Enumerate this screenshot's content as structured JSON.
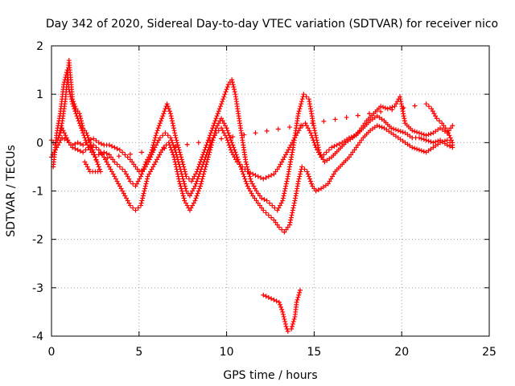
{
  "chart_data": {
    "type": "scatter",
    "title": "Day 342 of 2020, Sidereal Day-to-day VTEC variation (SDTVAR) for receiver nico",
    "xlabel": "GPS time / hours",
    "ylabel": "SDTVAR / TECUs",
    "xlim": [
      0,
      25
    ],
    "ylim": [
      -4,
      2
    ],
    "xticks": [
      0,
      5,
      10,
      15,
      20,
      25
    ],
    "yticks": [
      -4,
      -3,
      -2,
      -1,
      0,
      1,
      2
    ],
    "grid": true,
    "marker": "+",
    "color": "#ff0000",
    "series": [
      {
        "name": "track-1",
        "points": [
          [
            0.0,
            0.05
          ],
          [
            0.2,
            -0.05
          ],
          [
            0.4,
            0.1
          ],
          [
            0.6,
            0.3
          ],
          [
            0.8,
            0.15
          ],
          [
            1.0,
            0.0
          ],
          [
            1.2,
            -0.05
          ],
          [
            1.5,
            0.0
          ],
          [
            1.8,
            -0.05
          ],
          [
            2.1,
            0.05
          ],
          [
            2.4,
            0.08
          ],
          [
            2.7,
            0.0
          ],
          [
            3.0,
            -0.05
          ],
          [
            3.3,
            -0.05
          ],
          [
            3.6,
            -0.1
          ],
          [
            3.9,
            -0.15
          ],
          [
            4.2,
            -0.25
          ],
          [
            4.5,
            -0.35
          ],
          [
            4.8,
            -0.5
          ],
          [
            5.0,
            -0.6
          ],
          [
            5.3,
            -0.55
          ],
          [
            5.6,
            -0.35
          ],
          [
            5.9,
            -0.1
          ],
          [
            6.2,
            0.1
          ],
          [
            6.5,
            0.2
          ],
          [
            6.8,
            0.1
          ],
          [
            7.1,
            -0.2
          ],
          [
            7.4,
            -0.6
          ],
          [
            7.7,
            -1.0
          ],
          [
            7.9,
            -1.1
          ],
          [
            8.2,
            -0.9
          ],
          [
            8.5,
            -0.6
          ],
          [
            8.8,
            -0.3
          ],
          [
            9.1,
            0.0
          ],
          [
            9.4,
            0.2
          ],
          [
            9.7,
            0.3
          ],
          [
            10.0,
            0.1
          ],
          [
            10.3,
            -0.2
          ],
          [
            10.6,
            -0.4
          ],
          [
            10.9,
            -0.5
          ],
          [
            11.2,
            -0.6
          ],
          [
            11.5,
            -0.65
          ],
          [
            11.8,
            -0.7
          ],
          [
            12.1,
            -0.75
          ],
          [
            12.4,
            -0.7
          ],
          [
            12.7,
            -0.65
          ],
          [
            13.0,
            -0.5
          ],
          [
            13.3,
            -0.3
          ],
          [
            13.6,
            -0.1
          ],
          [
            13.9,
            0.1
          ],
          [
            14.2,
            0.3
          ],
          [
            14.5,
            0.4
          ],
          [
            14.8,
            0.2
          ],
          [
            15.1,
            -0.1
          ],
          [
            15.4,
            -0.3
          ],
          [
            15.7,
            -0.2
          ],
          [
            16.0,
            -0.1
          ],
          [
            16.3,
            -0.05
          ],
          [
            16.6,
            0.0
          ],
          [
            17.0,
            0.1
          ],
          [
            17.4,
            0.15
          ],
          [
            17.8,
            0.3
          ],
          [
            18.2,
            0.45
          ],
          [
            18.6,
            0.55
          ],
          [
            19.0,
            0.45
          ],
          [
            19.4,
            0.3
          ],
          [
            19.8,
            0.25
          ],
          [
            20.2,
            0.2
          ],
          [
            20.6,
            0.1
          ],
          [
            21.0,
            0.1
          ],
          [
            21.4,
            0.05
          ],
          [
            21.8,
            0.0
          ],
          [
            22.2,
            0.05
          ],
          [
            22.6,
            -0.05
          ],
          [
            22.9,
            -0.1
          ]
        ]
      },
      {
        "name": "track-2",
        "points": [
          [
            0.0,
            -0.3
          ],
          [
            0.3,
            -0.1
          ],
          [
            0.6,
            0.1
          ],
          [
            0.9,
            0.05
          ],
          [
            1.2,
            -0.1
          ],
          [
            1.5,
            -0.15
          ],
          [
            1.8,
            -0.2
          ],
          [
            2.1,
            -0.1
          ],
          [
            2.4,
            -0.05
          ],
          [
            2.7,
            -0.15
          ],
          [
            3.0,
            -0.3
          ],
          [
            3.3,
            -0.5
          ],
          [
            3.6,
            -0.7
          ],
          [
            3.9,
            -0.9
          ],
          [
            4.2,
            -1.1
          ],
          [
            4.5,
            -1.3
          ],
          [
            4.8,
            -1.4
          ],
          [
            5.1,
            -1.3
          ],
          [
            5.3,
            -1.0
          ],
          [
            5.5,
            -0.7
          ],
          [
            5.8,
            -0.5
          ],
          [
            6.1,
            -0.3
          ],
          [
            6.4,
            -0.1
          ],
          [
            6.7,
            0.0
          ],
          [
            7.0,
            -0.3
          ],
          [
            7.3,
            -0.8
          ],
          [
            7.6,
            -1.2
          ],
          [
            7.9,
            -1.4
          ],
          [
            8.2,
            -1.2
          ],
          [
            8.5,
            -0.9
          ],
          [
            8.8,
            -0.5
          ],
          [
            9.1,
            -0.1
          ],
          [
            9.4,
            0.3
          ],
          [
            9.7,
            0.5
          ],
          [
            10.0,
            0.3
          ],
          [
            10.3,
            0.0
          ],
          [
            10.6,
            -0.3
          ],
          [
            10.9,
            -0.6
          ],
          [
            11.2,
            -0.9
          ],
          [
            11.5,
            -1.1
          ],
          [
            11.8,
            -1.25
          ],
          [
            12.1,
            -1.4
          ],
          [
            12.4,
            -1.5
          ],
          [
            12.7,
            -1.6
          ],
          [
            13.0,
            -1.75
          ],
          [
            13.3,
            -1.85
          ],
          [
            13.6,
            -1.7
          ],
          [
            13.9,
            -1.2
          ],
          [
            14.1,
            -0.8
          ],
          [
            14.3,
            -0.5
          ],
          [
            14.6,
            -0.6
          ],
          [
            14.9,
            -0.9
          ],
          [
            15.1,
            -1.0
          ],
          [
            15.4,
            -0.95
          ],
          [
            15.8,
            -0.85
          ],
          [
            16.2,
            -0.6
          ],
          [
            16.6,
            -0.45
          ],
          [
            17.0,
            -0.3
          ],
          [
            17.4,
            -0.1
          ],
          [
            17.8,
            0.1
          ],
          [
            18.2,
            0.25
          ],
          [
            18.6,
            0.35
          ],
          [
            19.0,
            0.3
          ],
          [
            19.4,
            0.2
          ],
          [
            19.8,
            0.1
          ],
          [
            20.2,
            0.0
          ],
          [
            20.6,
            -0.1
          ],
          [
            21.0,
            -0.15
          ],
          [
            21.4,
            -0.2
          ],
          [
            21.8,
            -0.1
          ],
          [
            22.2,
            0.0
          ],
          [
            22.6,
            0.05
          ],
          [
            22.9,
            -0.05
          ]
        ]
      },
      {
        "name": "track-3",
        "points": [
          [
            0.1,
            -0.5
          ],
          [
            0.3,
            0.2
          ],
          [
            0.5,
            0.6
          ],
          [
            0.7,
            1.2
          ],
          [
            0.9,
            1.5
          ],
          [
            1.0,
            1.1
          ],
          [
            1.2,
            0.8
          ],
          [
            1.4,
            0.6
          ],
          [
            1.6,
            0.4
          ],
          [
            1.8,
            0.2
          ],
          [
            2.0,
            0.0
          ],
          [
            2.3,
            -0.2
          ],
          [
            2.5,
            -0.3
          ],
          [
            2.7,
            -0.25
          ],
          [
            3.0,
            -0.2
          ],
          [
            3.3,
            -0.25
          ],
          [
            3.6,
            -0.4
          ],
          [
            3.9,
            -0.5
          ],
          [
            4.2,
            -0.6
          ],
          [
            4.5,
            -0.8
          ],
          [
            4.8,
            -0.9
          ],
          [
            5.1,
            -0.7
          ],
          [
            5.4,
            -0.4
          ],
          [
            5.7,
            -0.2
          ],
          [
            6.0,
            0.2
          ],
          [
            6.3,
            0.5
          ],
          [
            6.6,
            0.8
          ],
          [
            6.8,
            0.6
          ],
          [
            7.1,
            0.1
          ],
          [
            7.4,
            -0.3
          ],
          [
            7.7,
            -0.7
          ],
          [
            8.0,
            -0.8
          ],
          [
            8.3,
            -0.6
          ],
          [
            8.6,
            -0.3
          ],
          [
            8.9,
            0.0
          ],
          [
            9.2,
            0.3
          ],
          [
            9.5,
            0.6
          ],
          [
            9.8,
            0.9
          ],
          [
            10.1,
            1.2
          ],
          [
            10.3,
            1.3
          ],
          [
            10.5,
            1.0
          ],
          [
            10.8,
            0.3
          ],
          [
            11.1,
            -0.4
          ],
          [
            11.4,
            -0.8
          ],
          [
            11.7,
            -1.0
          ],
          [
            12.0,
            -1.15
          ],
          [
            12.3,
            -1.2
          ],
          [
            12.6,
            -1.3
          ],
          [
            12.9,
            -1.4
          ],
          [
            13.2,
            -1.2
          ],
          [
            13.5,
            -0.7
          ],
          [
            13.8,
            -0.1
          ],
          [
            14.1,
            0.6
          ],
          [
            14.4,
            1.0
          ],
          [
            14.7,
            0.9
          ],
          [
            15.0,
            0.3
          ],
          [
            15.3,
            -0.2
          ],
          [
            15.6,
            -0.4
          ],
          [
            16.0,
            -0.3
          ],
          [
            16.4,
            -0.15
          ],
          [
            16.8,
            0.0
          ],
          [
            17.2,
            0.1
          ],
          [
            17.6,
            0.25
          ],
          [
            18.0,
            0.45
          ],
          [
            18.4,
            0.6
          ],
          [
            18.8,
            0.75
          ],
          [
            19.2,
            0.7
          ],
          [
            19.6,
            0.75
          ],
          [
            19.9,
            0.95
          ],
          [
            20.2,
            0.4
          ],
          [
            20.6,
            0.25
          ],
          [
            21.0,
            0.2
          ],
          [
            21.4,
            0.15
          ],
          [
            21.8,
            0.2
          ],
          [
            22.2,
            0.3
          ],
          [
            22.6,
            0.2
          ],
          [
            22.9,
            0.35
          ]
        ]
      },
      {
        "name": "track-4",
        "points": [
          [
            0.4,
            0.1
          ],
          [
            0.6,
            0.4
          ],
          [
            0.8,
            0.9
          ],
          [
            1.0,
            1.7
          ],
          [
            1.1,
            1.3
          ],
          [
            1.2,
            0.9
          ],
          [
            1.4,
            0.7
          ],
          [
            1.6,
            0.6
          ],
          [
            1.8,
            0.3
          ],
          [
            2.0,
            0.2
          ],
          [
            2.2,
            0.0
          ],
          [
            2.4,
            -0.2
          ],
          [
            2.6,
            -0.4
          ],
          [
            2.8,
            -0.6
          ],
          [
            2.2,
            -0.6
          ],
          [
            1.9,
            -0.4
          ],
          [
            21.4,
            0.8
          ],
          [
            21.7,
            0.7
          ],
          [
            22.0,
            0.5
          ],
          [
            22.3,
            0.4
          ],
          [
            22.6,
            0.25
          ],
          [
            22.9,
            0.0
          ]
        ]
      },
      {
        "name": "track-5",
        "points": [
          [
            12.1,
            -3.15
          ],
          [
            12.4,
            -3.2
          ],
          [
            12.7,
            -3.25
          ],
          [
            13.0,
            -3.3
          ],
          [
            13.2,
            -3.5
          ],
          [
            13.4,
            -3.8
          ],
          [
            13.5,
            -3.9
          ],
          [
            13.7,
            -3.85
          ],
          [
            13.9,
            -3.6
          ],
          [
            14.0,
            -3.3
          ],
          [
            14.2,
            -3.05
          ]
        ]
      }
    ]
  }
}
